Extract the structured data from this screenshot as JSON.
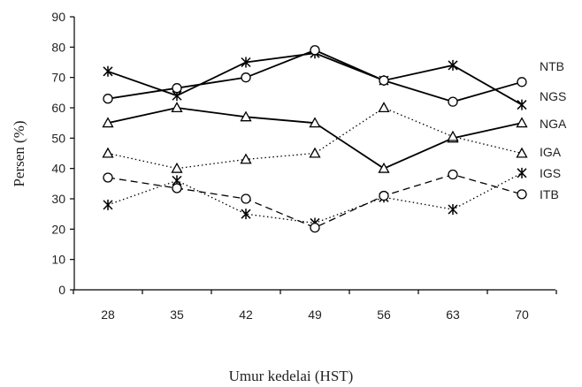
{
  "chart_data": {
    "type": "line",
    "x": [
      28,
      35,
      42,
      49,
      56,
      63,
      70
    ],
    "xlabel": "Umur kedelai (HST)",
    "ylabel": "Persen (%)",
    "ylim": [
      0,
      90
    ],
    "yticks": [
      0,
      10,
      20,
      30,
      40,
      50,
      60,
      70,
      80,
      90
    ],
    "grid": false,
    "legend": "right, labels at line ends",
    "series": [
      {
        "name": "NTB",
        "marker": "asterisk",
        "dash": "solid",
        "values": [
          72,
          64,
          75,
          78,
          69,
          74,
          61
        ]
      },
      {
        "name": "NGS",
        "marker": "circle",
        "dash": "solid",
        "values": [
          63,
          66.5,
          70,
          79,
          69,
          62,
          68.5
        ]
      },
      {
        "name": "NGA",
        "marker": "triangle",
        "dash": "solid",
        "values": [
          55,
          60,
          57,
          55,
          40,
          50,
          55
        ]
      },
      {
        "name": "IGA",
        "marker": "triangle",
        "dash": "dotted",
        "values": [
          45,
          40,
          43,
          45,
          60,
          50.5,
          45
        ]
      },
      {
        "name": "IGS",
        "marker": "asterisk",
        "dash": "dotted",
        "values": [
          28,
          36,
          25,
          22,
          30.5,
          26.5,
          38.5
        ]
      },
      {
        "name": "ITB",
        "marker": "circle",
        "dash": "dashed",
        "values": [
          37,
          33.5,
          30,
          20.5,
          31,
          38,
          31.5
        ]
      }
    ]
  }
}
